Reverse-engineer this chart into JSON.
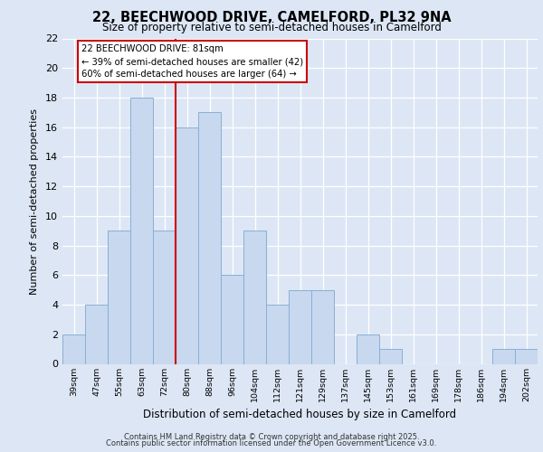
{
  "title1": "22, BEECHWOOD DRIVE, CAMELFORD, PL32 9NA",
  "title2": "Size of property relative to semi-detached houses in Camelford",
  "xlabel": "Distribution of semi-detached houses by size in Camelford",
  "ylabel": "Number of semi-detached properties",
  "bar_labels": [
    "39sqm",
    "47sqm",
    "55sqm",
    "63sqm",
    "72sqm",
    "80sqm",
    "88sqm",
    "96sqm",
    "104sqm",
    "112sqm",
    "121sqm",
    "129sqm",
    "137sqm",
    "145sqm",
    "153sqm",
    "161sqm",
    "169sqm",
    "178sqm",
    "186sqm",
    "194sqm",
    "202sqm"
  ],
  "bar_values": [
    2,
    4,
    9,
    18,
    9,
    16,
    17,
    6,
    9,
    4,
    5,
    5,
    0,
    2,
    1,
    0,
    0,
    0,
    0,
    1,
    1
  ],
  "bar_color": "#c8d8ef",
  "bar_edge_color": "#8aafd4",
  "vline_color": "#cc0000",
  "annotation_title": "22 BEECHWOOD DRIVE: 81sqm",
  "annotation_line1": "← 39% of semi-detached houses are smaller (42)",
  "annotation_line2": "60% of semi-detached houses are larger (64) →",
  "ylim": [
    0,
    22
  ],
  "yticks": [
    0,
    2,
    4,
    6,
    8,
    10,
    12,
    14,
    16,
    18,
    20,
    22
  ],
  "footer1": "Contains HM Land Registry data © Crown copyright and database right 2025.",
  "footer2": "Contains public sector information licensed under the Open Government Licence v3.0.",
  "bg_color": "#dce6f5",
  "plot_bg_color": "#dce6f5"
}
